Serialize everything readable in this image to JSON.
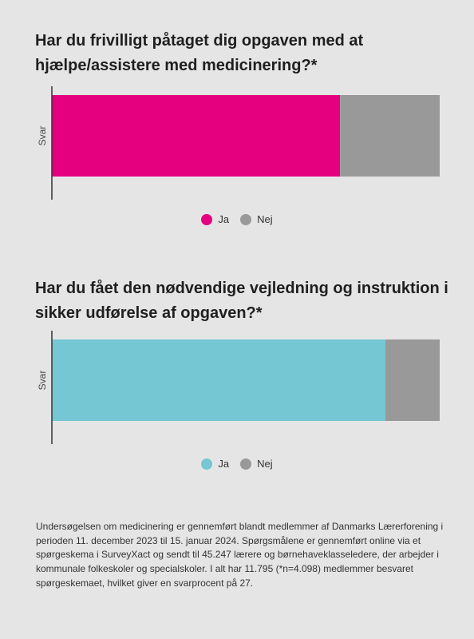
{
  "colors": {
    "ja_1": "#e4007f",
    "ja_2": "#74c7d3",
    "nej": "#999999",
    "axis": "#333333"
  },
  "chart_data": [
    {
      "type": "bar",
      "orientation": "horizontal",
      "stacked": true,
      "normalized_percent": true,
      "title": "Har du frivilligt påtaget dig opgaven med at hjælpe/assistere med medicinering?*",
      "categories": [
        "Svar"
      ],
      "series": [
        {
          "name": "Ja",
          "values": [
            74.3
          ],
          "color": "#e4007f"
        },
        {
          "name": "Nej",
          "values": [
            25.7
          ],
          "color": "#999999"
        }
      ],
      "xlim": [
        0,
        100
      ],
      "legend": "bottom-center",
      "grid": false
    },
    {
      "type": "bar",
      "orientation": "horizontal",
      "stacked": true,
      "normalized_percent": true,
      "title": "Har du fået den nødvendige vejledning og instruktion i sikker udførelse af opgaven?*",
      "categories": [
        "Svar"
      ],
      "series": [
        {
          "name": "Ja",
          "values": [
            86.0
          ],
          "color": "#74c7d3"
        },
        {
          "name": "Nej",
          "values": [
            14.0
          ],
          "color": "#999999"
        }
      ],
      "xlim": [
        0,
        100
      ],
      "legend": "bottom-center",
      "grid": false
    }
  ],
  "footnote": "Undersøgelsen om medicinering er gennemført blandt medlemmer af Danmarks Lærerforening i perioden 11. december 2023 til 15. januar 2024. Spørgsmålene er gennemført online via et spørgeskema i SurveyXact og sendt til 45.247 lærere og børnehaveklasseledere, der arbejder i kommunale folkeskoler og specialskoler. I alt har 11.795 (*n=4.098) medlemmer besvaret spørgeskemaet, hvilket giver en svarprocent på 27."
}
